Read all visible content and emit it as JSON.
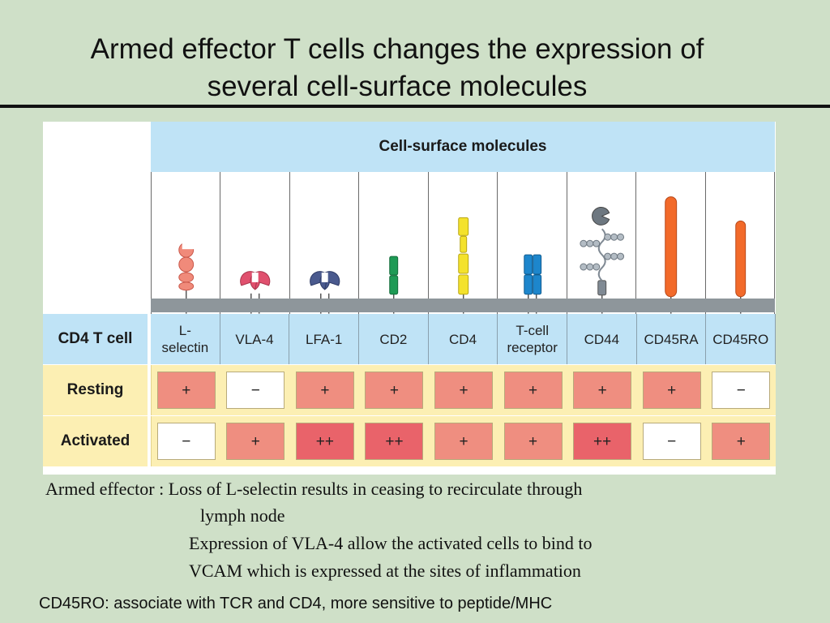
{
  "title_line1": "Armed effector T cells changes the expression of",
  "title_line2": "several cell-surface molecules",
  "figure": {
    "header": "Cell-surface molecules",
    "row_labels": {
      "cell": "CD4 T cell",
      "resting": "Resting",
      "activated": "Activated"
    },
    "molecules": [
      {
        "label_line1": "L-",
        "label_line2": "selectin",
        "resting": "+",
        "activated": "−",
        "icon": "l-selectin-icon"
      },
      {
        "label_line1": "VLA-4",
        "label_line2": "",
        "resting": "−",
        "activated": "+",
        "icon": "vla4-icon"
      },
      {
        "label_line1": "LFA-1",
        "label_line2": "",
        "resting": "+",
        "activated": "++",
        "icon": "lfa1-icon"
      },
      {
        "label_line1": "CD2",
        "label_line2": "",
        "resting": "+",
        "activated": "++",
        "icon": "cd2-icon"
      },
      {
        "label_line1": "CD4",
        "label_line2": "",
        "resting": "+",
        "activated": "+",
        "icon": "cd4-icon"
      },
      {
        "label_line1": "T-cell",
        "label_line2": "receptor",
        "resting": "+",
        "activated": "+",
        "icon": "tcr-icon"
      },
      {
        "label_line1": "CD44",
        "label_line2": "",
        "resting": "+",
        "activated": "++",
        "icon": "cd44-icon"
      },
      {
        "label_line1": "CD45RA",
        "label_line2": "",
        "resting": "+",
        "activated": "−",
        "icon": "cd45ra-icon"
      },
      {
        "label_line1": "CD45RO",
        "label_line2": "",
        "resting": "−",
        "activated": "+",
        "icon": "cd45ro-icon"
      }
    ],
    "colors": {
      "plus": "#ef8e80",
      "plusplus": "#e9636a",
      "minus": "#ffffff",
      "header_blue": "#bfe3f6",
      "row_yellow": "#fcefb3"
    }
  },
  "notes": {
    "line1": "Armed effector : Loss of L-selectin results in ceasing to recirculate through",
    "line2": "lymph node",
    "line3": "Expression of VLA-4 allow the activated cells to bind to",
    "line4": "VCAM which is expressed at the sites of inflammation"
  },
  "footer": "CD45RO: associate with TCR and CD4, more sensitive to peptide/MHC"
}
